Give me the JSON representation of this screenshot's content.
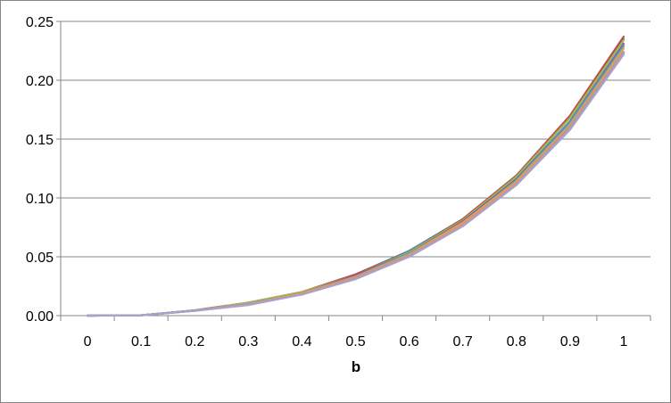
{
  "chart_data": {
    "type": "line",
    "title": "",
    "xlabel": "b",
    "ylabel": "",
    "categories": [
      "0",
      "0.1",
      "0.2",
      "0.3",
      "0.4",
      "0.5",
      "0.6",
      "0.7",
      "0.8",
      "0.9",
      "1"
    ],
    "ylim": [
      0,
      0.25
    ],
    "yticks": [
      "0.00",
      "0.05",
      "0.10",
      "0.15",
      "0.20",
      "0.25"
    ],
    "grid": true,
    "legend": "none",
    "series": [
      {
        "color": "#4a7ebb",
        "values": [
          0,
          0.0003,
          0.0045,
          0.011,
          0.02,
          0.035,
          0.055,
          0.082,
          0.119,
          0.169,
          0.235
        ]
      },
      {
        "color": "#be4b48",
        "values": [
          0,
          0.0003,
          0.0045,
          0.011,
          0.02,
          0.035,
          0.054,
          0.082,
          0.119,
          0.17,
          0.237
        ]
      },
      {
        "color": "#98b954",
        "values": [
          0,
          0.0003,
          0.0044,
          0.011,
          0.02,
          0.034,
          0.054,
          0.081,
          0.118,
          0.168,
          0.234
        ]
      },
      {
        "color": "#7d60a0",
        "values": [
          0,
          0.0003,
          0.0044,
          0.01,
          0.019,
          0.034,
          0.053,
          0.08,
          0.116,
          0.165,
          0.231
        ]
      },
      {
        "color": "#46aac5",
        "values": [
          0,
          0.0003,
          0.0043,
          0.01,
          0.019,
          0.033,
          0.053,
          0.079,
          0.115,
          0.164,
          0.229
        ]
      },
      {
        "color": "#f79646",
        "values": [
          0,
          0.0003,
          0.0043,
          0.01,
          0.019,
          0.033,
          0.052,
          0.079,
          0.114,
          0.162,
          0.227
        ]
      },
      {
        "color": "#8c9bbd",
        "values": [
          0,
          0.0003,
          0.0042,
          0.01,
          0.018,
          0.032,
          0.051,
          0.077,
          0.112,
          0.16,
          0.224
        ]
      },
      {
        "color": "#c19a8e",
        "values": [
          0,
          0.0003,
          0.0042,
          0.01,
          0.018,
          0.032,
          0.051,
          0.077,
          0.112,
          0.159,
          0.223
        ]
      },
      {
        "color": "#a9a0cc",
        "values": [
          0,
          0.0003,
          0.0041,
          0.009,
          0.018,
          0.031,
          0.05,
          0.076,
          0.111,
          0.158,
          0.222
        ]
      }
    ]
  }
}
